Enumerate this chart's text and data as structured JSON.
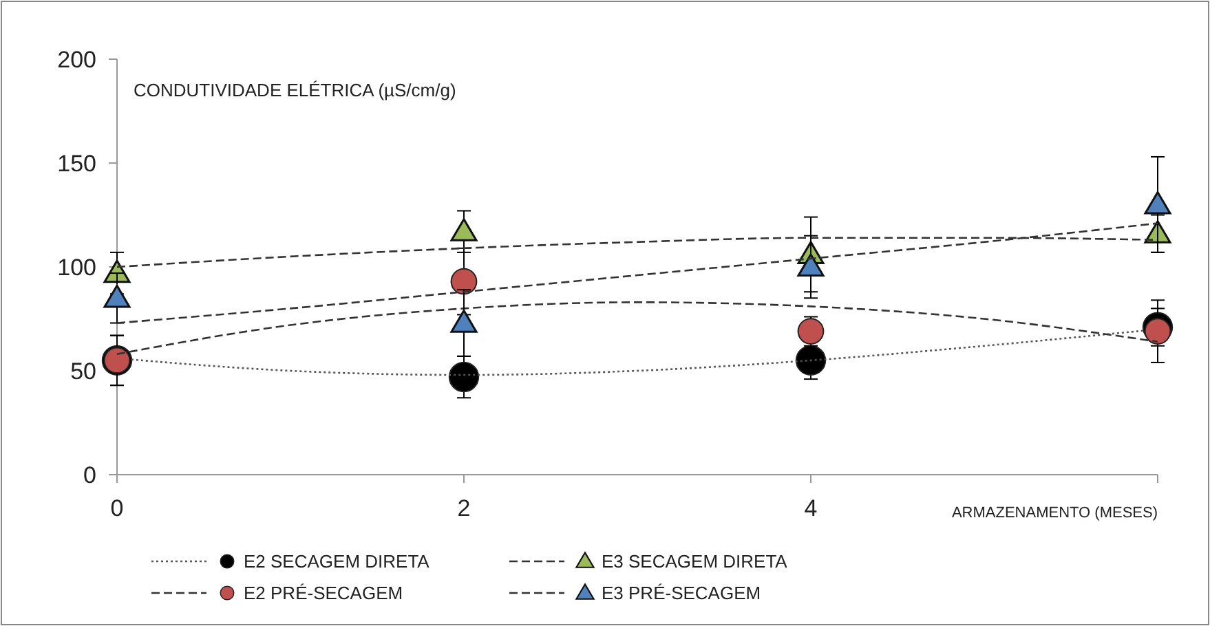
{
  "chart_data": {
    "type": "scatter",
    "xlabel": "ARMAZENAMENTO (MESES)",
    "ylabel": "CONDUTIVIDADE ELÉTRICA (µS/cm/g)",
    "xlim": [
      0,
      6
    ],
    "xticks": [
      0,
      2,
      4,
      {
        "value": 6,
        "label": null
      }
    ],
    "ylim": [
      0,
      200
    ],
    "yticks": [
      0,
      50,
      100,
      150,
      200
    ],
    "grid": false,
    "legend": "bottom",
    "series": [
      {
        "name": "E2 SECAGEM DIRETA",
        "color": "#000000",
        "marker": "circle",
        "x": [
          0,
          2,
          4,
          6
        ],
        "values": [
          55,
          47,
          55,
          71
        ],
        "errors": [
          12,
          10,
          9,
          9
        ]
      },
      {
        "type": "line",
        "color": "#555555",
        "line_style": "dotted",
        "x": [
          0,
          1,
          2,
          3,
          4,
          5,
          6
        ],
        "values": [
          56,
          50,
          48,
          50,
          55,
          62,
          70
        ]
      },
      {
        "name": "E2 PRÉ-SECAGEM",
        "color": "#c0504d",
        "marker": "circle",
        "x": [
          0,
          2,
          4,
          6
        ],
        "values": [
          55,
          93,
          69,
          69
        ],
        "errors": [
          12,
          16,
          7,
          15
        ]
      },
      {
        "type": "line",
        "color": "#333333",
        "line_style": "dashed",
        "x": [
          0,
          1,
          2,
          3,
          4,
          5,
          6
        ],
        "values": [
          58,
          72,
          80,
          83,
          81,
          75,
          64
        ]
      },
      {
        "name": "E3 SECAGEM DIRETA",
        "color": "#9bbb59",
        "marker": "triangle",
        "x": [
          0,
          2,
          4,
          6
        ],
        "values": [
          97,
          117,
          106,
          116
        ],
        "errors": [
          10,
          10,
          18,
          9
        ]
      },
      {
        "type": "line",
        "color": "#333333",
        "line_style": "dashed",
        "x": [
          0,
          1,
          2,
          3,
          4,
          5,
          6
        ],
        "values": [
          100,
          105,
          109,
          112,
          114,
          114,
          113
        ]
      },
      {
        "name": "E3 PRÉ-SECAGEM",
        "color": "#4f81bd",
        "marker": "triangle",
        "x": [
          0,
          2,
          4,
          6
        ],
        "values": [
          85,
          73,
          100,
          130
        ],
        "errors": [
          12,
          16,
          15,
          23
        ]
      },
      {
        "type": "line",
        "color": "#333333",
        "line_style": "dashed",
        "x": [
          0,
          1,
          2,
          3,
          4,
          5,
          6
        ],
        "values": [
          73,
          80,
          88,
          96,
          104,
          112,
          121
        ]
      }
    ]
  }
}
